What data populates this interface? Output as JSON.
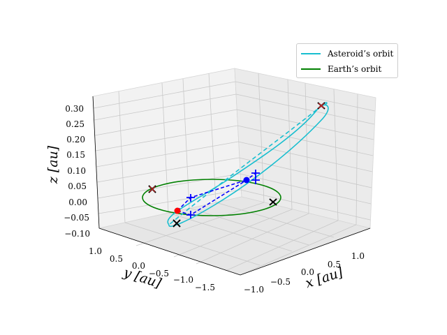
{
  "chart_data": {
    "type": "line",
    "projection": "3d",
    "title": "",
    "xlabel": "x [au]",
    "ylabel": "y [au]",
    "zlabel": "z [au]",
    "xlim": [
      -1.25,
      1.35
    ],
    "ylim": [
      -1.85,
      1.15
    ],
    "zlim": [
      -0.1,
      0.33
    ],
    "x_ticks": [
      "−1.0",
      "−0.5",
      "0.0",
      "0.5",
      "1.0"
    ],
    "y_ticks": [
      "1.0",
      "0.5",
      "0.0",
      "−0.5",
      "−1.0",
      "−1.5"
    ],
    "z_ticks": [
      "0.30",
      "0.25",
      "0.20",
      "0.15",
      "0.10",
      "0.05",
      "0.00",
      "−0.05",
      "−0.10"
    ],
    "grid": true,
    "legend_position": "top-right",
    "series": [
      {
        "name": "Asteroid’s orbit",
        "color": "#17becf",
        "style": "solid-front, dashed-back",
        "geometry": "inclined ellipse from approx (−1.1, −0.1, −0.08) to (1.25, −0.05, 0.31)"
      },
      {
        "name": "Earth’s orbit",
        "color": "#008000",
        "style": "solid",
        "geometry": "circle radius 1 in z=0 plane"
      }
    ],
    "markers": [
      {
        "kind": "black x",
        "label": "node points on Earth orbit"
      },
      {
        "kind": "red dot",
        "label": "Earth position"
      },
      {
        "kind": "blue dot",
        "label": "asteroid position"
      },
      {
        "kind": "blue +",
        "label": "connection points"
      }
    ]
  },
  "legend": {
    "items": [
      {
        "label": "Asteroid’s orbit",
        "color": "#17becf"
      },
      {
        "label": "Earth’s orbit",
        "color": "#008000"
      }
    ]
  }
}
